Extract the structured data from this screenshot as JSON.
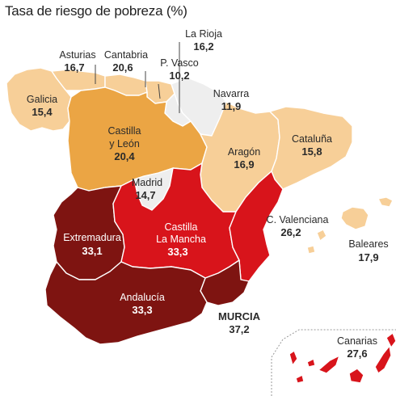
{
  "title": "Tasa de riesgo de pobreza (%)",
  "legend_colors": {
    "very_light": "#eeeeee",
    "light": "#f7cf98",
    "medium": "#eba544",
    "high": "#d8141b",
    "very_high": "#7e1411"
  },
  "regions": {
    "galicia": {
      "name": "Galicia",
      "value": "15,4"
    },
    "asturias": {
      "name": "Asturias",
      "value": "16,7"
    },
    "cantabria": {
      "name": "Cantabria",
      "value": "20,6"
    },
    "pais_vasco": {
      "name": "P. Vasco",
      "value": "10,2"
    },
    "la_rioja": {
      "name": "La Rioja",
      "value": "16,2"
    },
    "navarra": {
      "name": "Navarra",
      "value": "11,9"
    },
    "cataluna": {
      "name": "Cataluña",
      "value": "15,8"
    },
    "aragon": {
      "name": "Aragón",
      "value": "16,9"
    },
    "castilla_leon": {
      "name_line1": "Castilla",
      "name_line2": "y León",
      "value": "20,4"
    },
    "madrid": {
      "name": "Madrid",
      "value": "14,7"
    },
    "extremadura": {
      "name": "Extremadura",
      "value": "33,1"
    },
    "castilla_mancha": {
      "name_line1": "Castilla",
      "name_line2": "La Mancha",
      "value": "33,3"
    },
    "valenciana": {
      "name": "C. Valenciana",
      "value": "26,2"
    },
    "baleares": {
      "name": "Baleares",
      "value": "17,9"
    },
    "andalucia": {
      "name": "Andalucía",
      "value": "33,3"
    },
    "murcia": {
      "name": "MURCIA",
      "value": "37,2"
    },
    "canarias": {
      "name": "Canarias",
      "value": "27,6"
    }
  }
}
